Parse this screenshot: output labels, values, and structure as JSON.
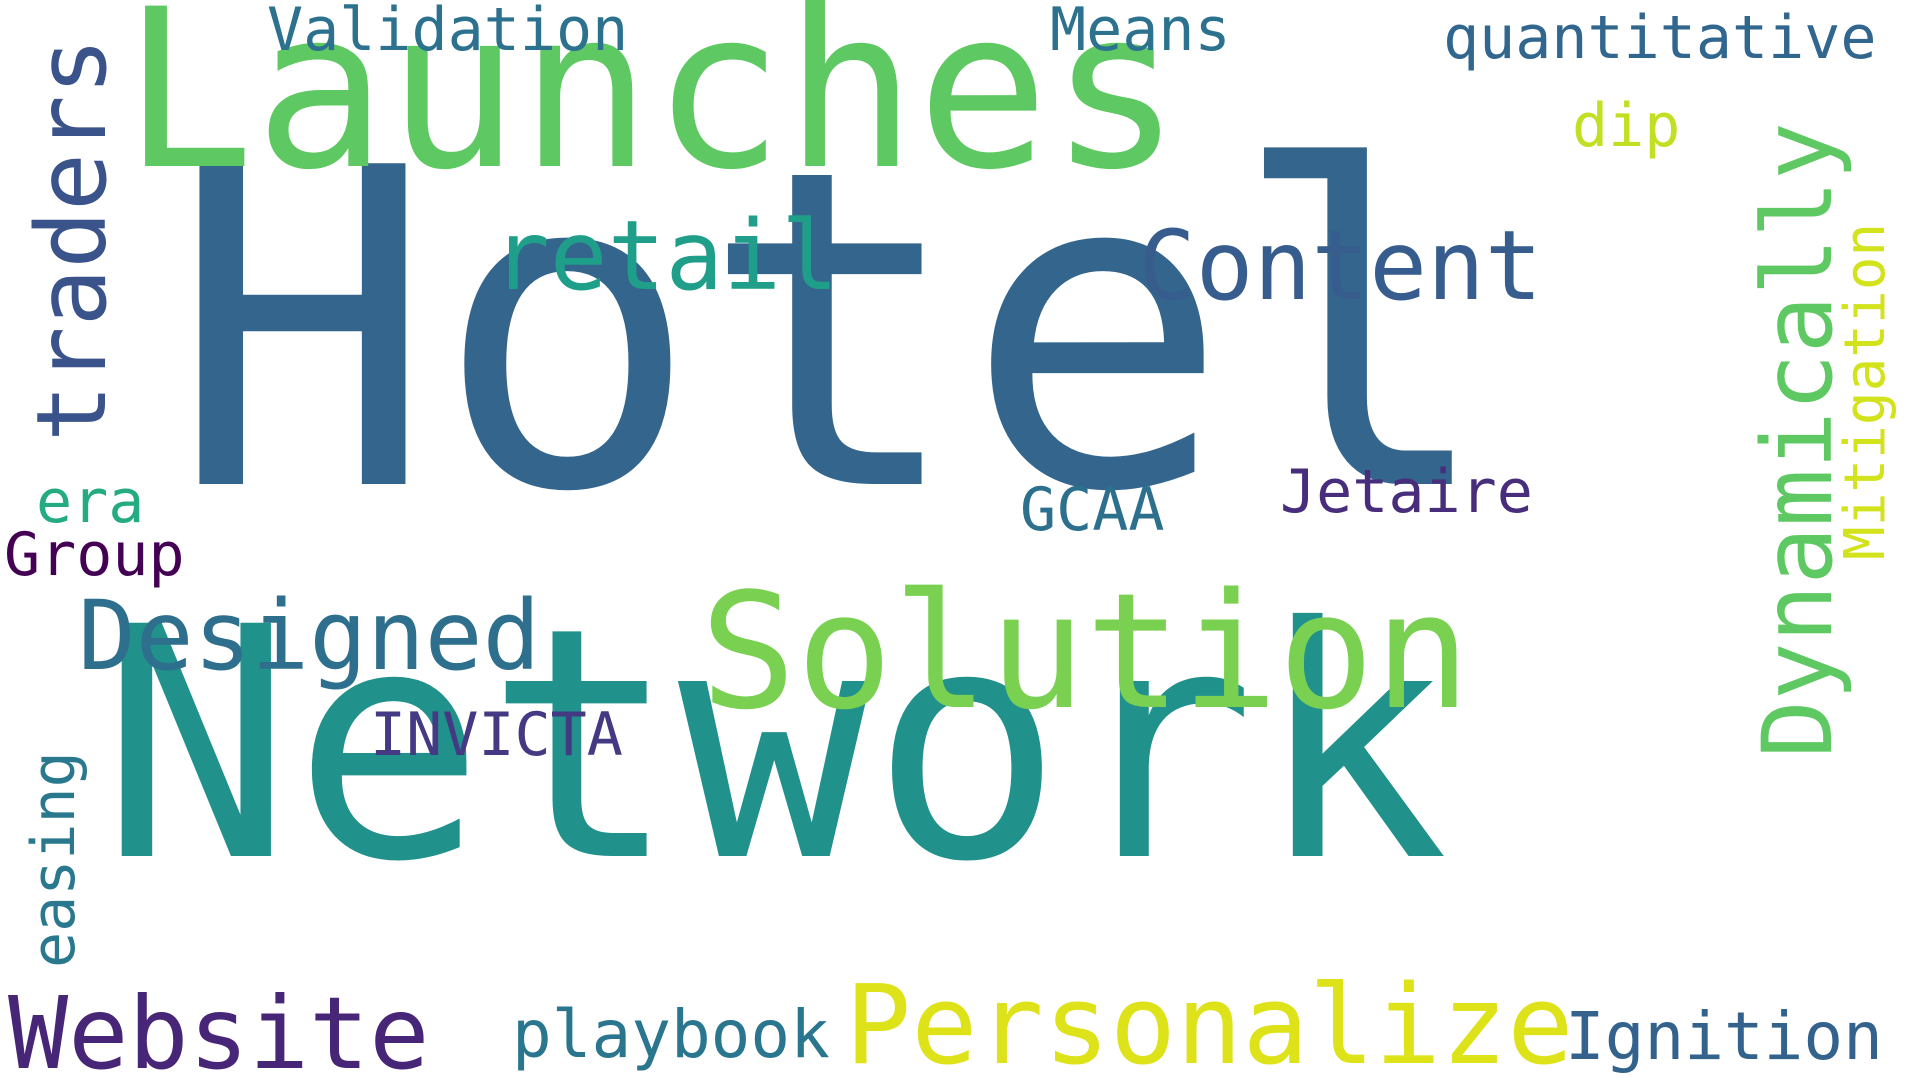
{
  "word_cloud": {
    "background": "#ffffff",
    "words": [
      {
        "text": "Hotel",
        "color": "#33658d"
      },
      {
        "text": "Network",
        "color": "#21918c"
      },
      {
        "text": "Launches",
        "color": "#5ec962"
      },
      {
        "text": "Solution",
        "color": "#7ad151"
      },
      {
        "text": "Personalize",
        "color": "#dde318"
      },
      {
        "text": "Website",
        "color": "#482677"
      },
      {
        "text": "Designed",
        "color": "#2e6f8e"
      },
      {
        "text": "Content",
        "color": "#365d8d"
      },
      {
        "text": "retail",
        "color": "#1f9e89"
      },
      {
        "text": "traders",
        "color": "#3a538b"
      },
      {
        "text": "Dynamically",
        "color": "#5ec962"
      },
      {
        "text": "Mitigation",
        "color": "#d2e21b"
      },
      {
        "text": "Validation",
        "color": "#2c718e"
      },
      {
        "text": "Means",
        "color": "#2c728e"
      },
      {
        "text": "quantitative",
        "color": "#31668e"
      },
      {
        "text": "dip",
        "color": "#c2df23"
      },
      {
        "text": "GCAA",
        "color": "#2d708e"
      },
      {
        "text": "Jetaire",
        "color": "#472d7b"
      },
      {
        "text": "era",
        "color": "#25ab82"
      },
      {
        "text": "Group",
        "color": "#440154"
      },
      {
        "text": "INVICTA",
        "color": "#443983"
      },
      {
        "text": "easing",
        "color": "#2a788e"
      },
      {
        "text": "playbook",
        "color": "#2a768e"
      },
      {
        "text": "Ignition",
        "color": "#33638d"
      }
    ]
  }
}
